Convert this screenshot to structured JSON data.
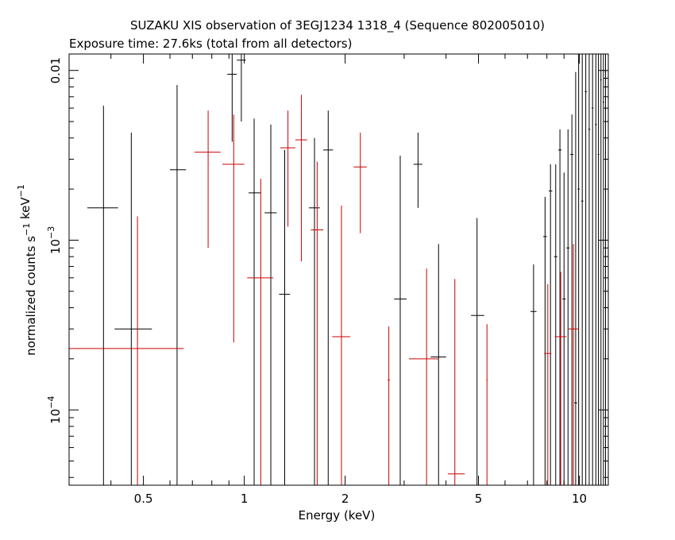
{
  "chart_data": {
    "type": "scatter",
    "title": "SUZAKU XIS observation of 3EGJ1234 1318_4 (Sequence 802005010)",
    "subtitle": "Exposure time: 27.6ks (total from all detectors)",
    "xlabel": "Energy (keV)",
    "ylabel": "normalized counts s^-1 keV^-1",
    "xscale": "log",
    "yscale": "log",
    "xlim": [
      0.3,
      12.2
    ],
    "ylim": [
      3.6e-05,
      0.0125
    ],
    "grid": false,
    "x_ticks": [
      {
        "value": 0.5,
        "label": "0.5"
      },
      {
        "value": 1,
        "label": "1"
      },
      {
        "value": 2,
        "label": "2"
      },
      {
        "value": 5,
        "label": "5"
      },
      {
        "value": 10,
        "label": "10"
      }
    ],
    "y_ticks": [
      {
        "value": 0.01,
        "label": "0.01"
      },
      {
        "value": 0.001,
        "label": "10",
        "exp": "−3"
      },
      {
        "value": 0.0001,
        "label": "10",
        "exp": "−4"
      }
    ],
    "series": [
      {
        "color": "#000000",
        "points": [
          {
            "x": 0.38,
            "xlo": 0.34,
            "xhi": 0.42,
            "y": 0.00155,
            "ylo": 1e-07,
            "yhi": 0.0062
          },
          {
            "x": 0.46,
            "xlo": 0.41,
            "xhi": 0.53,
            "y": 0.0003,
            "ylo": 1e-07,
            "yhi": 0.0043
          },
          {
            "x": 0.63,
            "xlo": 0.6,
            "xhi": 0.67,
            "y": 0.0026,
            "ylo": 1e-07,
            "yhi": 0.0082
          },
          {
            "x": 0.92,
            "xlo": 0.89,
            "xhi": 0.95,
            "y": 0.0095,
            "ylo": 0.0038,
            "yhi": 0.013
          },
          {
            "x": 0.98,
            "xlo": 0.95,
            "xhi": 1.01,
            "y": 0.0115,
            "ylo": 0.005,
            "yhi": 0.013
          },
          {
            "x": 1.07,
            "xlo": 1.03,
            "xhi": 1.12,
            "y": 0.0019,
            "ylo": 1e-07,
            "yhi": 0.0052
          },
          {
            "x": 1.2,
            "xlo": 1.15,
            "xhi": 1.25,
            "y": 0.00145,
            "ylo": 1e-07,
            "yhi": 0.0048
          },
          {
            "x": 1.32,
            "xlo": 1.27,
            "xhi": 1.37,
            "y": 0.00048,
            "ylo": 1e-07,
            "yhi": 0.0034
          },
          {
            "x": 1.62,
            "xlo": 1.56,
            "xhi": 1.68,
            "y": 0.00155,
            "ylo": 1e-07,
            "yhi": 0.004
          },
          {
            "x": 1.78,
            "xlo": 1.72,
            "xhi": 1.84,
            "y": 0.0034,
            "ylo": 1e-07,
            "yhi": 0.0058
          },
          {
            "x": 2.92,
            "xlo": 2.8,
            "xhi": 3.05,
            "y": 0.00045,
            "ylo": 1e-07,
            "yhi": 0.00315
          },
          {
            "x": 3.3,
            "xlo": 3.2,
            "xhi": 3.4,
            "y": 0.0028,
            "ylo": 0.00155,
            "yhi": 0.0043
          },
          {
            "x": 3.8,
            "xlo": 3.6,
            "xhi": 4.0,
            "y": 0.000205,
            "ylo": 1e-07,
            "yhi": 0.00095
          },
          {
            "x": 4.95,
            "xlo": 4.75,
            "xhi": 5.2,
            "y": 0.00036,
            "ylo": 1e-07,
            "yhi": 0.00135
          },
          {
            "x": 7.3,
            "xlo": 7.15,
            "xhi": 7.45,
            "y": 0.00038,
            "ylo": 1e-07,
            "yhi": 0.00072
          },
          {
            "x": 7.9,
            "xlo": 7.8,
            "xhi": 8.0,
            "y": 0.00105,
            "ylo": 1e-07,
            "yhi": 0.0018
          },
          {
            "x": 8.2,
            "xlo": 8.1,
            "xhi": 8.3,
            "y": 0.00195,
            "ylo": 1e-07,
            "yhi": 0.0028
          },
          {
            "x": 8.5,
            "xlo": 8.4,
            "xhi": 8.6,
            "y": 0.0008,
            "ylo": 1e-07,
            "yhi": 0.0028
          },
          {
            "x": 8.75,
            "xlo": 8.65,
            "xhi": 8.85,
            "y": 0.0034,
            "ylo": 1e-07,
            "yhi": 0.0045
          },
          {
            "x": 9.0,
            "xlo": 8.9,
            "xhi": 9.1,
            "y": 0.00045,
            "ylo": 1e-07,
            "yhi": 0.0025
          },
          {
            "x": 9.25,
            "xlo": 9.15,
            "xhi": 9.35,
            "y": 0.0009,
            "ylo": 1e-07,
            "yhi": 0.0045
          },
          {
            "x": 9.5,
            "xlo": 9.4,
            "xhi": 9.6,
            "y": 0.0032,
            "ylo": 1e-07,
            "yhi": 0.0055
          },
          {
            "x": 9.75,
            "xlo": 9.65,
            "xhi": 9.85,
            "y": 0.00011,
            "ylo": 1e-07,
            "yhi": 0.0098
          },
          {
            "x": 9.95,
            "xlo": 9.88,
            "xhi": 10.02,
            "y": 0.002,
            "ylo": 1e-07,
            "yhi": 0.013
          },
          {
            "x": 10.2,
            "xlo": 10.12,
            "xhi": 10.28,
            "y": 0.0017,
            "ylo": 1e-07,
            "yhi": 0.013
          },
          {
            "x": 10.45,
            "xlo": 10.38,
            "xhi": 10.52,
            "y": 0.0075,
            "ylo": 1e-07,
            "yhi": 0.013
          },
          {
            "x": 10.7,
            "xlo": 10.63,
            "xhi": 10.77,
            "y": 0.0045,
            "ylo": 1e-07,
            "yhi": 0.013
          },
          {
            "x": 10.95,
            "xlo": 10.88,
            "xhi": 11.02,
            "y": 0.006,
            "ylo": 1e-07,
            "yhi": 0.013
          },
          {
            "x": 11.2,
            "xlo": 11.13,
            "xhi": 11.27,
            "y": 0.0048,
            "ylo": 1e-07,
            "yhi": 0.013
          },
          {
            "x": 11.4,
            "xlo": 11.34,
            "xhi": 11.46,
            "y": 0.0032,
            "ylo": 1e-07,
            "yhi": 0.013
          },
          {
            "x": 11.6,
            "xlo": 11.54,
            "xhi": 11.66,
            "y": 0.0088,
            "ylo": 1e-07,
            "yhi": 0.013
          },
          {
            "x": 11.8,
            "xlo": 11.74,
            "xhi": 11.86,
            "y": 0.0065,
            "ylo": 1e-07,
            "yhi": 0.013
          },
          {
            "x": 11.97,
            "xlo": 11.92,
            "xhi": 12.02,
            "y": 0.0098,
            "ylo": 1e-07,
            "yhi": 0.013
          }
        ]
      },
      {
        "color": "#cc0000",
        "points": [
          {
            "x": 0.48,
            "xlo": 0.3,
            "xhi": 0.66,
            "y": 0.00023,
            "ylo": 1e-07,
            "yhi": 0.00138
          },
          {
            "x": 0.78,
            "xlo": 0.71,
            "xhi": 0.85,
            "y": 0.0033,
            "ylo": 0.0009,
            "yhi": 0.0058
          },
          {
            "x": 0.93,
            "xlo": 0.86,
            "xhi": 1.0,
            "y": 0.0028,
            "ylo": 0.00025,
            "yhi": 0.0055
          },
          {
            "x": 1.12,
            "xlo": 1.02,
            "xhi": 1.22,
            "y": 0.0006,
            "ylo": 1e-07,
            "yhi": 0.0023
          },
          {
            "x": 1.35,
            "xlo": 1.28,
            "xhi": 1.42,
            "y": 0.0035,
            "ylo": 0.0012,
            "yhi": 0.0058
          },
          {
            "x": 1.48,
            "xlo": 1.42,
            "xhi": 1.54,
            "y": 0.0039,
            "ylo": 0.00075,
            "yhi": 0.0072
          },
          {
            "x": 1.65,
            "xlo": 1.58,
            "xhi": 1.72,
            "y": 0.00115,
            "ylo": 1e-07,
            "yhi": 0.0029
          },
          {
            "x": 1.95,
            "xlo": 1.83,
            "xhi": 2.07,
            "y": 0.00027,
            "ylo": 1e-07,
            "yhi": 0.0016
          },
          {
            "x": 2.22,
            "xlo": 2.12,
            "xhi": 2.32,
            "y": 0.0027,
            "ylo": 0.0011,
            "yhi": 0.0043
          },
          {
            "x": 2.7,
            "xlo": 2.68,
            "xhi": 2.72,
            "y": 0.00015,
            "ylo": 1e-07,
            "yhi": 0.00031
          },
          {
            "x": 3.5,
            "xlo": 3.1,
            "xhi": 3.8,
            "y": 0.0002,
            "ylo": 1e-07,
            "yhi": 0.00068
          },
          {
            "x": 4.25,
            "xlo": 4.05,
            "xhi": 4.55,
            "y": 4.2e-05,
            "ylo": 1e-07,
            "yhi": 0.00059
          },
          {
            "x": 5.3,
            "xlo": 5.28,
            "xhi": 5.32,
            "y": 0.00015,
            "ylo": 1e-07,
            "yhi": 0.00032
          },
          {
            "x": 8.05,
            "xlo": 7.85,
            "xhi": 8.25,
            "y": 0.000215,
            "ylo": 1e-07,
            "yhi": 0.00055
          },
          {
            "x": 8.8,
            "xlo": 8.45,
            "xhi": 9.15,
            "y": 0.00027,
            "ylo": 1e-07,
            "yhi": 0.00065
          },
          {
            "x": 9.6,
            "xlo": 9.25,
            "xhi": 9.95,
            "y": 0.0003,
            "ylo": 1e-07,
            "yhi": 0.00095
          }
        ]
      }
    ]
  }
}
